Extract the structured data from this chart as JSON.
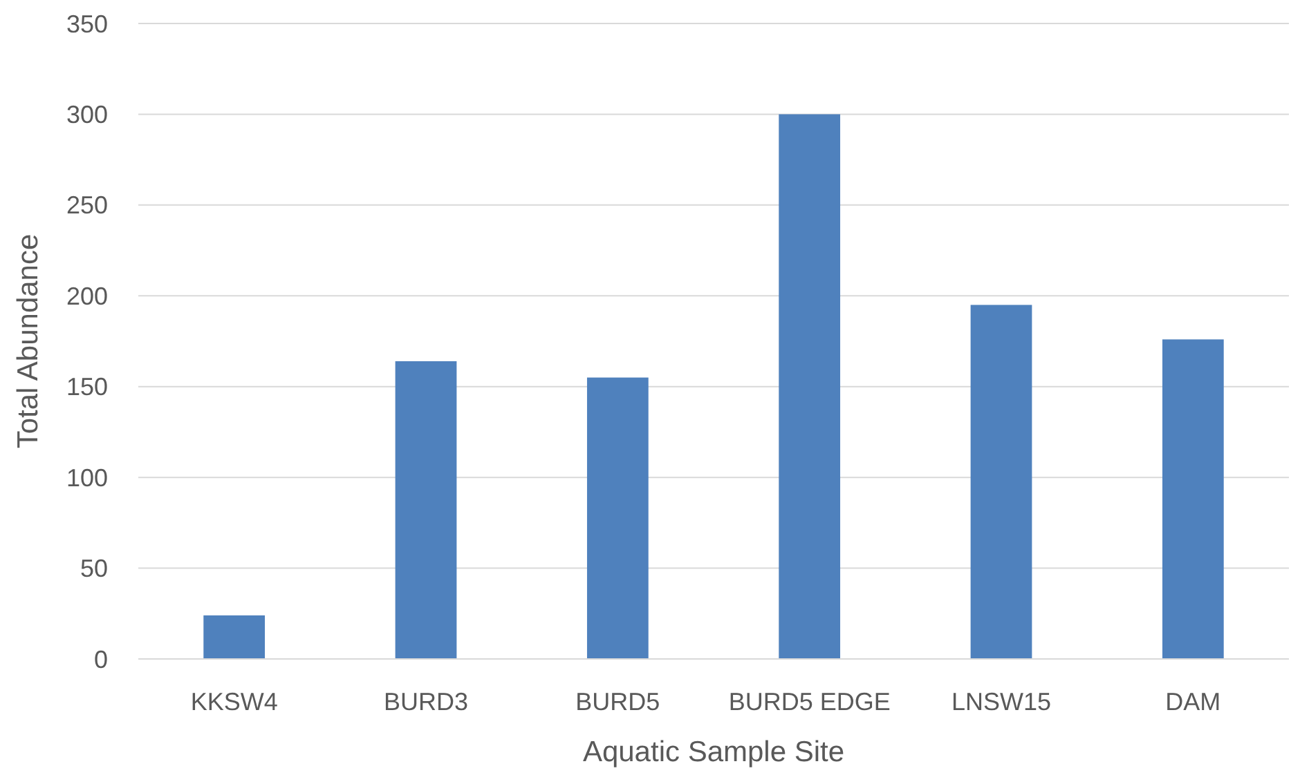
{
  "chart_data": {
    "type": "bar",
    "xlabel": "Aquatic Sample Site",
    "ylabel": "Total Abundance",
    "categories": [
      "KKSW4",
      "BURD3",
      "BURD5",
      "BURD5 EDGE",
      "LNSW15",
      "DAM"
    ],
    "values": [
      24,
      164,
      155,
      300,
      195,
      176
    ],
    "color": "#4f81bd",
    "ylim": [
      0,
      350
    ],
    "yticks": [
      0,
      50,
      100,
      150,
      200,
      250,
      300,
      350
    ],
    "grid": "y"
  }
}
